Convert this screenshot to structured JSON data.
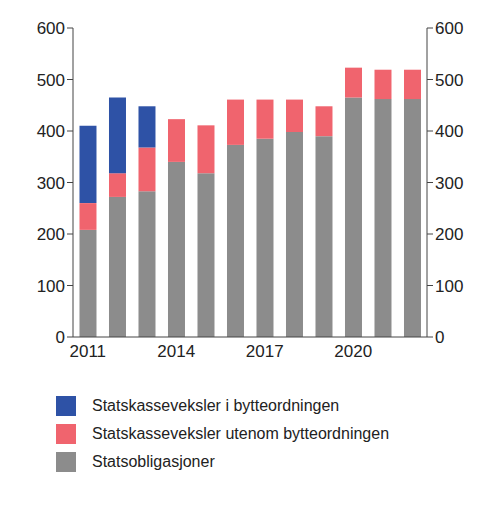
{
  "chart_data": {
    "type": "bar",
    "stacked": true,
    "categories": [
      "2011",
      null,
      null,
      "2014",
      null,
      null,
      "2017",
      null,
      null,
      "2020",
      null,
      null
    ],
    "ylim": [
      0,
      600
    ],
    "yticks": [
      0,
      100,
      200,
      300,
      400,
      500,
      600
    ],
    "grid": false,
    "series": [
      {
        "name": "Statskasseveksler i bytteordningen",
        "color": "#2e52a6",
        "values": [
          150,
          147,
          80,
          0,
          0,
          0,
          0,
          0,
          0,
          0,
          0,
          0
        ]
      },
      {
        "name": "Statskasseveksler utenom bytteordningen",
        "color": "#f0646e",
        "values": [
          52,
          46,
          85,
          83,
          93,
          88,
          76,
          63,
          58,
          58,
          57,
          57
        ]
      },
      {
        "name": "Statsobligasjoner",
        "color": "#8c8c8c",
        "values": [
          208,
          272,
          283,
          340,
          318,
          373,
          385,
          398,
          390,
          465,
          462,
          462
        ]
      }
    ]
  }
}
